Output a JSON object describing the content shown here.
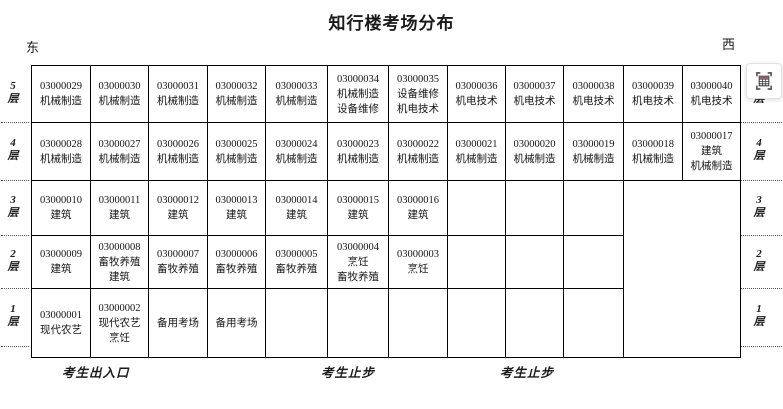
{
  "page_title": "知行楼考场分布",
  "direction_labels": {
    "east": "东",
    "west": "西"
  },
  "floors": [
    {
      "num": "5",
      "suffix": "层"
    },
    {
      "num": "4",
      "suffix": "层"
    },
    {
      "num": "3",
      "suffix": "层"
    },
    {
      "num": "2",
      "suffix": "层"
    },
    {
      "num": "1",
      "suffix": "层"
    }
  ],
  "grid": {
    "columns": 12,
    "rows": [
      {
        "floor": "5",
        "cells": [
          [
            "03000029",
            "机械制造"
          ],
          [
            "03000030",
            "机械制造"
          ],
          [
            "03000031",
            "机械制造"
          ],
          [
            "03000032",
            "机械制造"
          ],
          [
            "03000033",
            "机械制造"
          ],
          [
            "03000034",
            "机械制造",
            "设备维修"
          ],
          [
            "03000035",
            "设备维修",
            "机电技术"
          ],
          [
            "03000036",
            "机电技术"
          ],
          [
            "03000037",
            "机电技术"
          ],
          [
            "03000038",
            "机电技术"
          ],
          [
            "03000039",
            "机电技术"
          ],
          [
            "03000040",
            "机电技术"
          ]
        ]
      },
      {
        "floor": "4",
        "cells": [
          [
            "03000028",
            "机械制造"
          ],
          [
            "03000027",
            "机械制造"
          ],
          [
            "03000026",
            "机械制造"
          ],
          [
            "03000025",
            "机械制造"
          ],
          [
            "03000024",
            "机械制造"
          ],
          [
            "03000023",
            "机械制造"
          ],
          [
            "03000022",
            "机械制造"
          ],
          [
            "03000021",
            "机械制造"
          ],
          [
            "03000020",
            "机械制造"
          ],
          [
            "03000019",
            "机械制造"
          ],
          [
            "03000018",
            "机械制造"
          ],
          [
            "03000017",
            "建筑",
            "机械制造"
          ]
        ]
      },
      {
        "floor": "3",
        "cells": [
          [
            "03000010",
            "建筑"
          ],
          [
            "03000011",
            "建筑"
          ],
          [
            "03000012",
            "建筑"
          ],
          [
            "03000013",
            "建筑"
          ],
          [
            "03000014",
            "建筑"
          ],
          [
            "03000015",
            "建筑"
          ],
          [
            "03000016",
            "建筑"
          ],
          [],
          [],
          []
        ],
        "merged_tail": {
          "colspan": 2,
          "rowspan": 3
        }
      },
      {
        "floor": "2",
        "cells": [
          [
            "03000009",
            "建筑"
          ],
          [
            "03000008",
            "畜牧养殖",
            "建筑"
          ],
          [
            "03000007",
            "畜牧养殖"
          ],
          [
            "03000006",
            "畜牧养殖"
          ],
          [
            "03000005",
            "畜牧养殖"
          ],
          [
            "03000004",
            "烹饪",
            "畜牧养殖"
          ],
          [
            "03000003",
            "烹饪"
          ],
          [],
          [],
          []
        ]
      },
      {
        "floor": "1",
        "cells": [
          [
            "03000001",
            "现代农艺"
          ],
          [
            "03000002",
            "现代农艺",
            "烹饪"
          ],
          [
            "备用考场"
          ],
          [
            "备用考场"
          ],
          [],
          [],
          [],
          [],
          [],
          []
        ]
      }
    ]
  },
  "bottom_labels": [
    "考生出入口",
    "考生止步",
    "考生止步"
  ],
  "corner_icon": {
    "name": "table-capture-icon",
    "accent_color": "#a2545f",
    "line_color": "#4d4d4d"
  }
}
